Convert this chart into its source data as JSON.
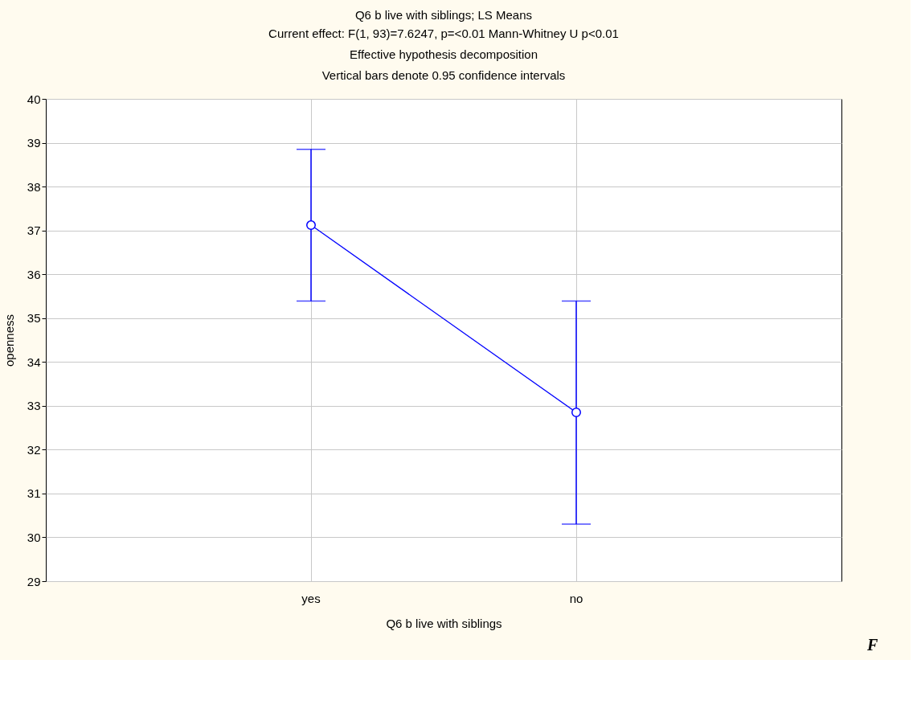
{
  "chart_data": {
    "type": "line",
    "title": "Q6 b live with siblings; LS Means",
    "subtitle": "Current effect: F(1, 93)=7.6247, p=<0.01 Mann-Whitney U p<0.01\nEffective hypothesis decomposition\nVertical bars denote 0.95 confidence intervals",
    "xlabel": "Q6 b live with siblings",
    "ylabel": "openness",
    "categories": [
      "yes",
      "no"
    ],
    "series": [
      {
        "color": "#0000ff",
        "values": [
          37.12,
          32.85
        ],
        "errors": [
          [
            35.39,
            38.85
          ],
          [
            30.3,
            35.39
          ]
        ]
      }
    ],
    "ylim": [
      29,
      40
    ],
    "yticks": [
      29,
      30,
      31,
      32,
      33,
      34,
      35,
      36,
      37,
      38,
      39,
      40
    ],
    "grid": true,
    "marker": "circle",
    "line_style": "solid",
    "annotations": [
      "F"
    ]
  }
}
